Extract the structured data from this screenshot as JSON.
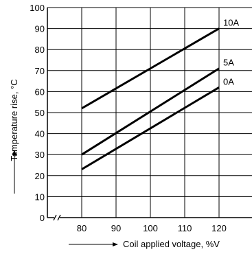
{
  "chart_data": {
    "type": "line",
    "xlabel": "Coil applied voltage, %V",
    "ylabel": "Temperature rise, °C",
    "xlim": [
      70,
      130
    ],
    "ylim": [
      0,
      100
    ],
    "x_ticks": [
      80,
      90,
      100,
      110,
      120
    ],
    "y_ticks": [
      0,
      10,
      20,
      30,
      40,
      50,
      60,
      70,
      80,
      90,
      100
    ],
    "grid": true,
    "axis_break": "x",
    "series": [
      {
        "name": "10A",
        "x": [
          80,
          120
        ],
        "y": [
          52,
          90
        ]
      },
      {
        "name": "5A",
        "x": [
          80,
          120
        ],
        "y": [
          30,
          71
        ]
      },
      {
        "name": "0A",
        "x": [
          80,
          120
        ],
        "y": [
          23,
          62
        ]
      }
    ]
  }
}
